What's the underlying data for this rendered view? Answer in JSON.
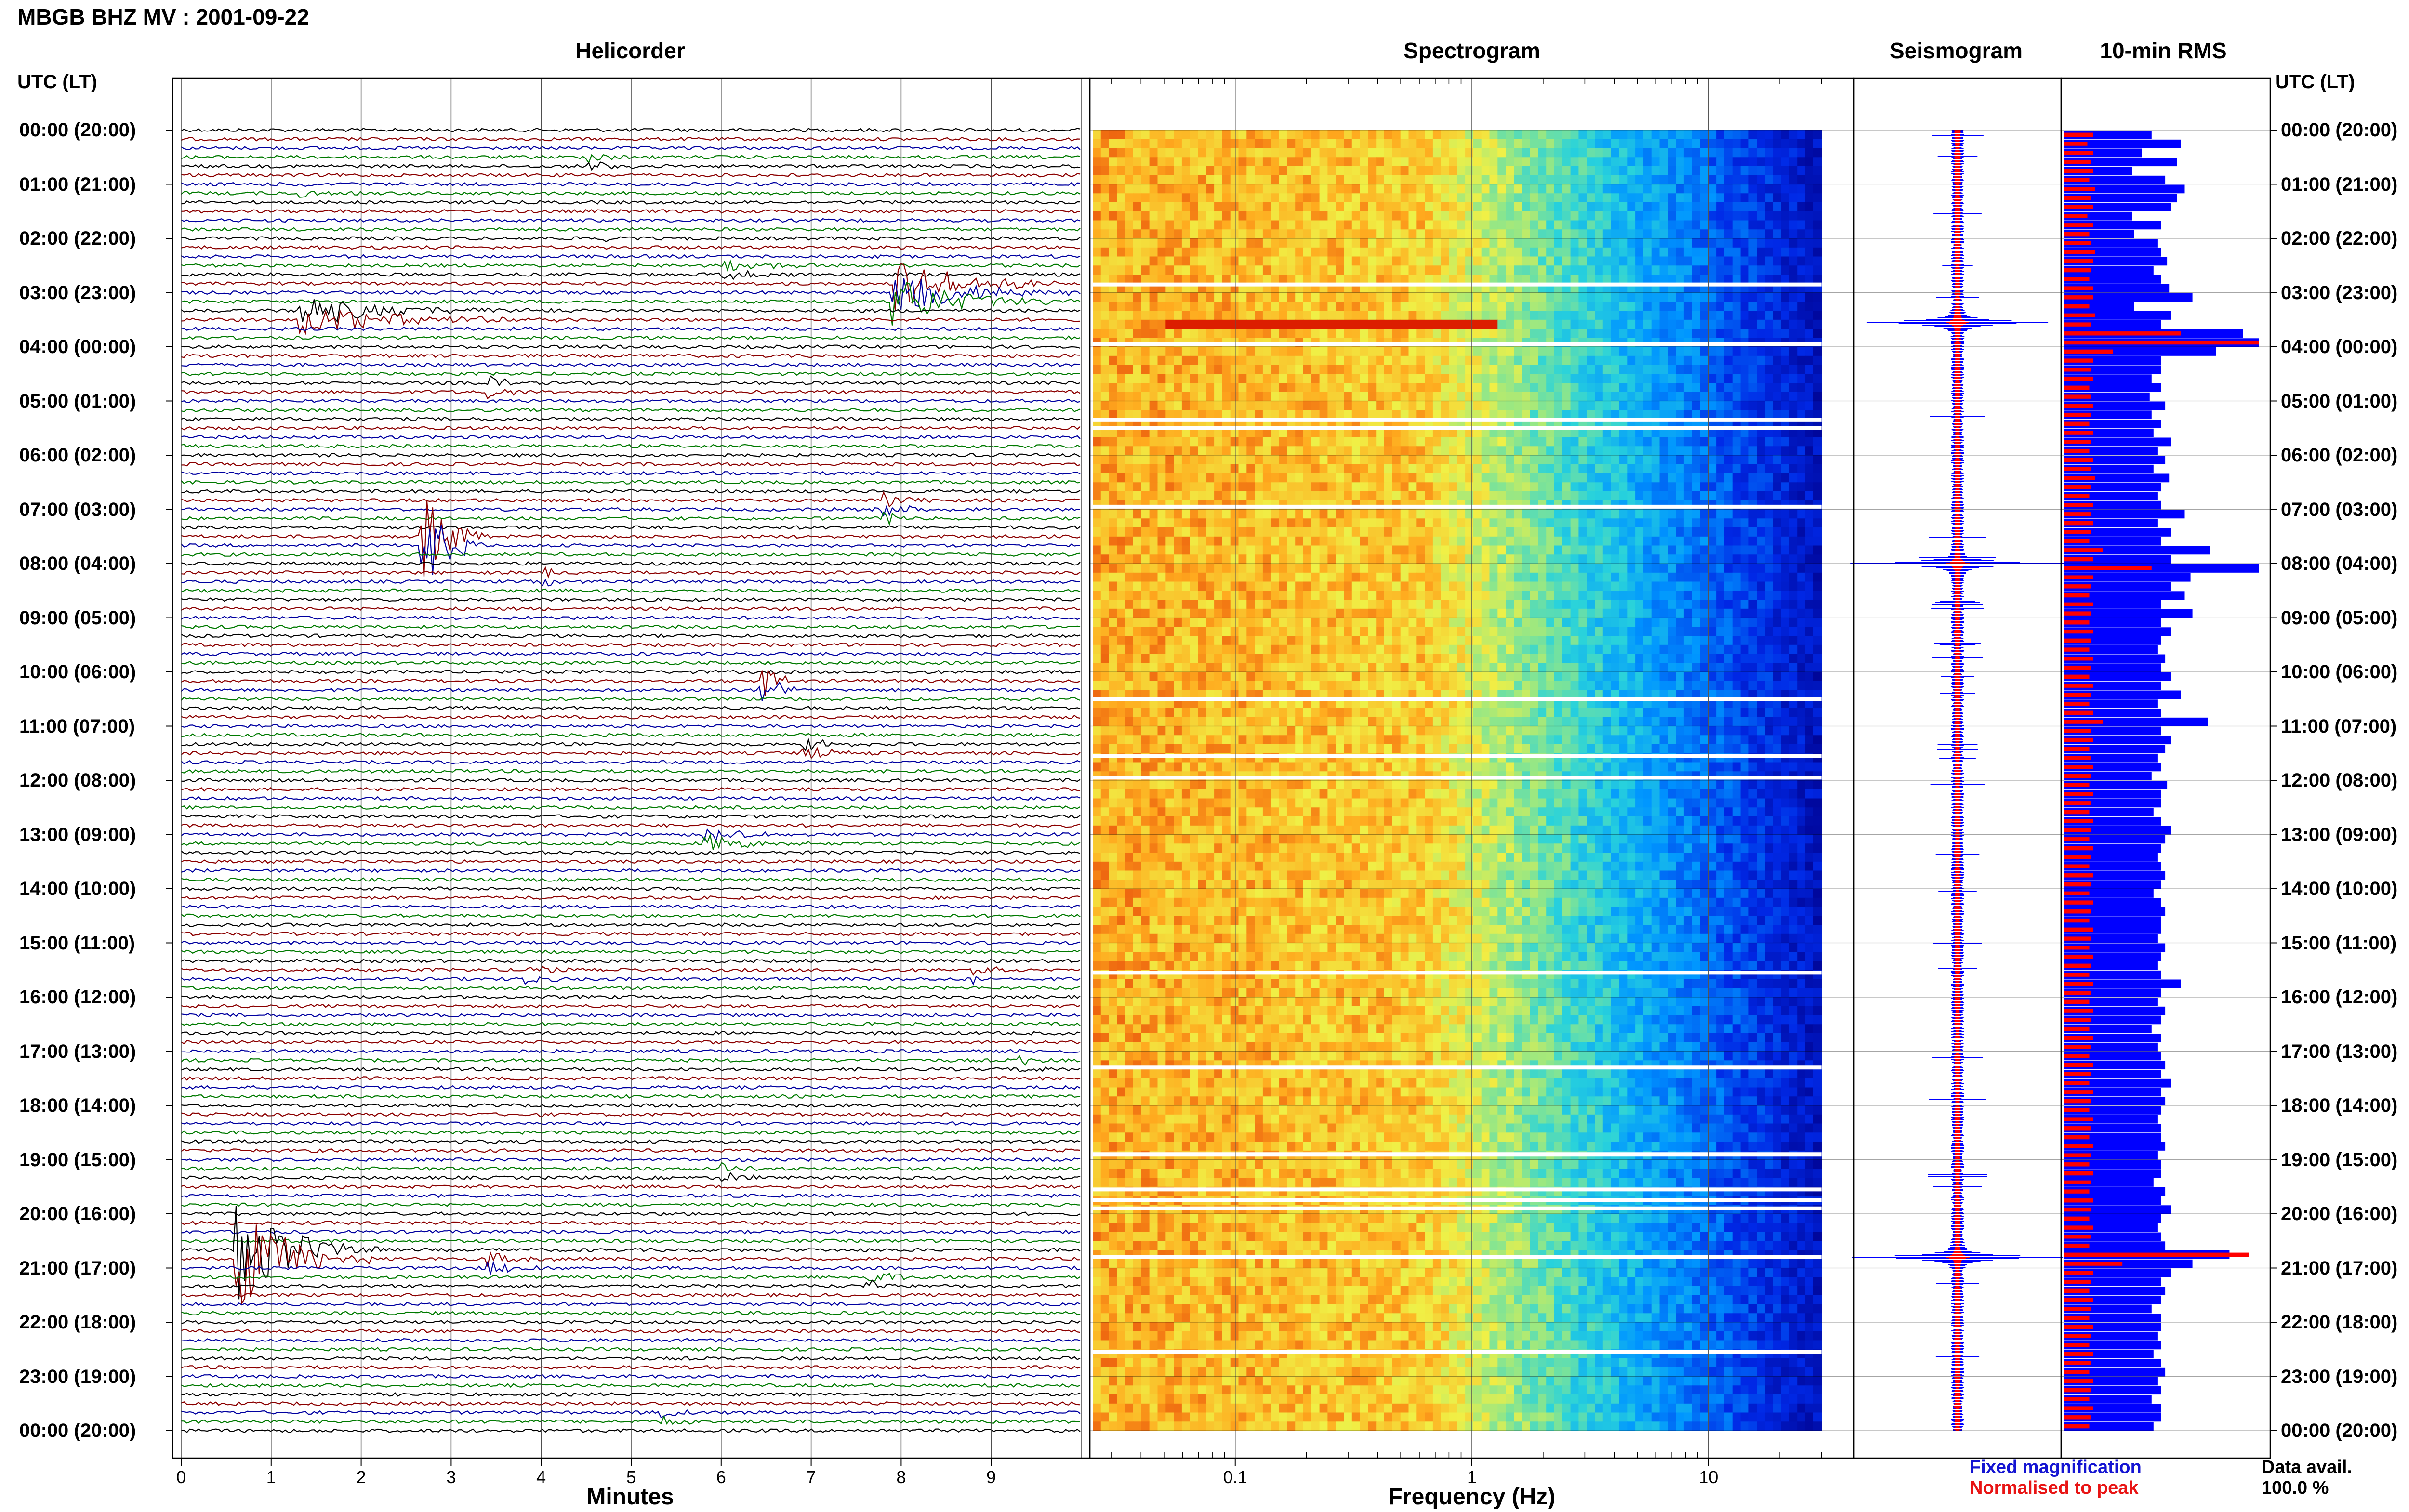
{
  "header": {
    "title": "MBGB BHZ MV : 2001-09-22",
    "utc_label": "UTC (LT)"
  },
  "panels": {
    "helicorder": "Helicorder",
    "spectrogram": "Spectrogram",
    "seismogram": "Seismogram",
    "rms": "10-min RMS"
  },
  "legend": {
    "fixed": "Fixed magnification",
    "normalised": "Normalised to peak"
  },
  "availability": {
    "label": "Data avail.",
    "value": "100.0 %"
  },
  "colors": {
    "trace_cycle": [
      "#000000",
      "#8b0000",
      "#0000a0",
      "#007a00"
    ],
    "fixed": "#0000ff",
    "normalised": "#ff0000",
    "grid": "#888888"
  },
  "chart_data": [
    {
      "type": "line",
      "panel": "helicorder",
      "xlabel": "Minutes",
      "x_ticks": [
        0,
        1,
        2,
        3,
        4,
        5,
        6,
        7,
        8,
        9
      ],
      "xlim": [
        0,
        10
      ],
      "time_labels": [
        "00:00 (20:00)",
        "01:00 (21:00)",
        "02:00 (22:00)",
        "03:00 (23:00)",
        "04:00 (00:00)",
        "05:00 (01:00)",
        "06:00 (02:00)",
        "07:00 (03:00)",
        "08:00 (04:00)",
        "09:00 (05:00)",
        "10:00 (06:00)",
        "11:00 (07:00)",
        "12:00 (08:00)",
        "13:00 (09:00)",
        "14:00 (10:00)",
        "15:00 (11:00)",
        "16:00 (12:00)",
        "17:00 (13:00)",
        "18:00 (14:00)",
        "19:00 (15:00)",
        "20:00 (16:00)",
        "21:00 (17:00)",
        "22:00 (18:00)",
        "23:00 (19:00)",
        "00:00 (20:00)"
      ],
      "rows_per_hour": 6,
      "events": [
        {
          "hour": 0.55,
          "minute": 4.5,
          "amp": 3,
          "dur": 0.9
        },
        {
          "hour": 1.1,
          "minute": 1.3,
          "amp": 3,
          "dur": 0.6
        },
        {
          "hour": 1.95,
          "minute": 4.7,
          "amp": 2,
          "dur": 0.5
        },
        {
          "hour": 2.55,
          "minute": 6.0,
          "amp": 4,
          "dur": 1.2
        },
        {
          "hour": 3.0,
          "minute": 7.9,
          "amp": 14,
          "dur": 2.0
        },
        {
          "hour": 3.4,
          "minute": 1.3,
          "amp": 8,
          "dur": 3.0
        },
        {
          "hour": 4.8,
          "minute": 3.4,
          "amp": 4,
          "dur": 0.6
        },
        {
          "hour": 7.0,
          "minute": 7.8,
          "amp": 4,
          "dur": 0.8
        },
        {
          "hour": 7.55,
          "minute": 2.65,
          "amp": 28,
          "dur": 0.8
        },
        {
          "hour": 8.3,
          "minute": 4.0,
          "amp": 3,
          "dur": 0.6
        },
        {
          "hour": 10.3,
          "minute": 6.4,
          "amp": 16,
          "dur": 0.5
        },
        {
          "hour": 11.4,
          "minute": 6.9,
          "amp": 4,
          "dur": 0.8
        },
        {
          "hour": 13.1,
          "minute": 5.8,
          "amp": 5,
          "dur": 1.2
        },
        {
          "hour": 15.55,
          "minute": 3.8,
          "amp": 3,
          "dur": 0.8
        },
        {
          "hour": 15.6,
          "minute": 8.8,
          "amp": 3,
          "dur": 0.7
        },
        {
          "hour": 17.3,
          "minute": 9.3,
          "amp": 4,
          "dur": 0.4
        },
        {
          "hour": 19.3,
          "minute": 6.0,
          "amp": 4,
          "dur": 0.6
        },
        {
          "hour": 20.8,
          "minute": 0.6,
          "amp": 30,
          "dur": 1.6
        },
        {
          "hour": 20.85,
          "minute": 3.4,
          "amp": 5,
          "dur": 1.0
        },
        {
          "hour": 21.3,
          "minute": 7.6,
          "amp": 4,
          "dur": 0.8
        },
        {
          "hour": 23.7,
          "minute": 5.3,
          "amp": 3,
          "dur": 0.6
        }
      ]
    },
    {
      "type": "heatmap",
      "panel": "spectrogram",
      "xlabel": "Frequency (Hz)",
      "x_scale": "log",
      "x_ticks": [
        0.1,
        1,
        10
      ],
      "xlim": [
        0.025,
        40
      ],
      "data_until_hz": 30,
      "hot_events": [
        {
          "hour": 3.55,
          "f_lo": 0.05,
          "f_hi": 1.2
        }
      ],
      "gaps_hours": [
        2.85,
        3.95,
        5.35,
        5.5,
        6.95,
        10.5,
        11.55,
        11.95,
        15.55,
        17.3,
        18.9,
        19.55,
        19.75,
        19.9,
        20.8,
        22.55
      ]
    },
    {
      "type": "line",
      "panel": "seismogram",
      "spikes_hours": [
        3.55,
        8.0,
        20.8
      ],
      "series": [
        {
          "values_norm": [
            1.0
          ]
        }
      ]
    },
    {
      "type": "bar",
      "panel": "rms",
      "orientation": "horizontal",
      "blue_fixed": [
        0.45,
        0.6,
        0.4,
        0.58,
        0.35,
        0.52,
        0.62,
        0.58,
        0.55,
        0.35,
        0.5,
        0.36,
        0.48,
        0.5,
        0.53,
        0.46,
        0.5,
        0.54,
        0.66,
        0.36,
        0.55,
        0.5,
        0.92,
        1.0,
        0.78,
        0.5,
        0.5,
        0.45,
        0.5,
        0.44,
        0.52,
        0.45,
        0.5,
        0.46,
        0.55,
        0.48,
        0.52,
        0.46,
        0.54,
        0.5,
        0.48,
        0.5,
        0.62,
        0.48,
        0.55,
        0.5,
        0.75,
        0.55,
        1.0,
        0.65,
        0.55,
        0.62,
        0.5,
        0.66,
        0.5,
        0.55,
        0.5,
        0.48,
        0.52,
        0.5,
        0.55,
        0.5,
        0.6,
        0.48,
        0.5,
        0.74,
        0.5,
        0.55,
        0.52,
        0.48,
        0.5,
        0.45,
        0.53,
        0.5,
        0.5,
        0.46,
        0.5,
        0.55,
        0.52,
        0.5,
        0.48,
        0.5,
        0.52,
        0.5,
        0.46,
        0.5,
        0.52,
        0.5,
        0.5,
        0.48,
        0.52,
        0.5,
        0.48,
        0.5,
        0.6,
        0.5,
        0.48,
        0.52,
        0.5,
        0.45,
        0.5,
        0.48,
        0.5,
        0.52,
        0.5,
        0.55,
        0.5,
        0.52,
        0.5,
        0.48,
        0.5,
        0.5,
        0.52,
        0.48,
        0.5,
        0.5,
        0.46,
        0.52,
        0.5,
        0.55,
        0.5,
        0.48,
        0.5,
        0.52,
        0.85,
        0.66,
        0.55,
        0.5,
        0.52,
        0.5,
        0.45,
        0.5,
        0.5,
        0.48,
        0.5,
        0.46,
        0.5,
        0.52,
        0.48,
        0.5,
        0.45,
        0.5,
        0.5,
        0.46
      ],
      "red_norm": [
        0.15,
        0.12,
        0.15,
        0.14,
        0.15,
        0.13,
        0.16,
        0.14,
        0.15,
        0.12,
        0.15,
        0.13,
        0.14,
        0.16,
        0.15,
        0.14,
        0.13,
        0.15,
        0.15,
        0.13,
        0.16,
        0.14,
        0.6,
        1.0,
        0.25,
        0.15,
        0.14,
        0.15,
        0.13,
        0.14,
        0.15,
        0.14,
        0.13,
        0.15,
        0.14,
        0.13,
        0.15,
        0.14,
        0.16,
        0.14,
        0.13,
        0.15,
        0.14,
        0.15,
        0.14,
        0.13,
        0.2,
        0.15,
        0.45,
        0.15,
        0.14,
        0.13,
        0.15,
        0.14,
        0.13,
        0.15,
        0.14,
        0.13,
        0.15,
        0.14,
        0.13,
        0.15,
        0.14,
        0.13,
        0.15,
        0.2,
        0.14,
        0.15,
        0.13,
        0.14,
        0.15,
        0.14,
        0.13,
        0.15,
        0.14,
        0.13,
        0.15,
        0.14,
        0.13,
        0.15,
        0.14,
        0.13,
        0.15,
        0.14,
        0.13,
        0.15,
        0.14,
        0.13,
        0.15,
        0.14,
        0.13,
        0.15,
        0.14,
        0.13,
        0.15,
        0.14,
        0.13,
        0.15,
        0.14,
        0.13,
        0.15,
        0.14,
        0.13,
        0.15,
        0.14,
        0.13,
        0.15,
        0.14,
        0.13,
        0.15,
        0.14,
        0.13,
        0.15,
        0.14,
        0.13,
        0.15,
        0.14,
        0.13,
        0.15,
        0.14,
        0.13,
        0.15,
        0.14,
        0.13,
        0.95,
        0.3,
        0.15,
        0.14,
        0.13,
        0.15,
        0.14,
        0.13,
        0.15,
        0.14,
        0.13,
        0.15,
        0.14,
        0.13,
        0.15,
        0.14,
        0.13,
        0.15,
        0.14,
        0.13
      ]
    }
  ]
}
